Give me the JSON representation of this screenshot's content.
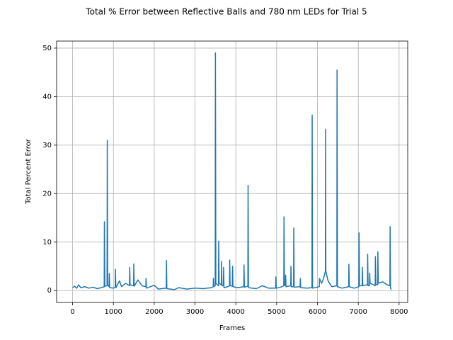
{
  "chart_data": {
    "type": "line",
    "title": "Total % Error between Reflective Balls and 780 nm LEDs for Trial 5",
    "x_label": "Frames",
    "y_label": "Total Percent Error",
    "color": "#1f77b4",
    "grid": true,
    "xlim": [
      -391,
      8211
    ],
    "ylim": [
      -2.45,
      51.45
    ],
    "xticks": [
      0,
      1000,
      2000,
      3000,
      4000,
      5000,
      6000,
      7000,
      8000
    ],
    "yticks": [
      0,
      10,
      20,
      30,
      40,
      50
    ],
    "x": [
      0,
      50,
      100,
      150,
      200,
      300,
      400,
      500,
      600,
      700,
      775,
      780,
      790,
      845,
      850,
      860,
      895,
      900,
      910,
      1000,
      1045,
      1050,
      1060,
      1150,
      1200,
      1300,
      1395,
      1400,
      1410,
      1495,
      1500,
      1510,
      1600,
      1700,
      1795,
      1800,
      1810,
      2000,
      2100,
      2295,
      2300,
      2310,
      2500,
      2600,
      2800,
      3000,
      3200,
      3400,
      3445,
      3450,
      3460,
      3495,
      3500,
      3510,
      3575,
      3580,
      3590,
      3645,
      3650,
      3660,
      3695,
      3700,
      3710,
      3800,
      3845,
      3850,
      3860,
      3915,
      3920,
      3930,
      4050,
      4195,
      4200,
      4210,
      4295,
      4300,
      4310,
      4500,
      4650,
      4800,
      4975,
      4980,
      4990,
      5100,
      5175,
      5180,
      5190,
      5215,
      5220,
      5230,
      5345,
      5350,
      5360,
      5415,
      5420,
      5430,
      5575,
      5580,
      5590,
      5750,
      5865,
      5870,
      5880,
      6045,
      6050,
      6100,
      6150,
      6195,
      6200,
      6205,
      6260,
      6350,
      6475,
      6480,
      6490,
      6600,
      6765,
      6770,
      6780,
      6900,
      7015,
      7020,
      7030,
      7095,
      7100,
      7110,
      7225,
      7230,
      7240,
      7275,
      7280,
      7290,
      7415,
      7420,
      7430,
      7475,
      7480,
      7490,
      7600,
      7700,
      7775,
      7780,
      7790,
      7810
    ],
    "values": [
      0.6,
      0.9,
      0.5,
      1.2,
      0.6,
      0.8,
      0.5,
      0.7,
      0.4,
      0.6,
      0.8,
      14.2,
      0.9,
      1.0,
      31,
      1.2,
      0.8,
      3.5,
      0.6,
      0.5,
      0.7,
      4.4,
      0.6,
      2.0,
      0.8,
      1.5,
      1.0,
      4.8,
      1.2,
      1.0,
      5.5,
      0.9,
      2.2,
      1.0,
      0.8,
      2.5,
      0.5,
      1.1,
      0.3,
      0.5,
      6.2,
      0.4,
      0.2,
      0.6,
      0.3,
      0.5,
      0.4,
      0.6,
      0.8,
      2.5,
      0.8,
      1.0,
      49,
      1.5,
      1.0,
      10.2,
      1.5,
      1.2,
      6.0,
      1.0,
      1.0,
      4.8,
      0.6,
      0.8,
      1.0,
      6.3,
      1.0,
      0.9,
      5.0,
      0.8,
      0.6,
      0.8,
      5.3,
      0.7,
      0.9,
      21.7,
      0.6,
      0.4,
      1.0,
      0.5,
      0.5,
      2.8,
      0.5,
      0.7,
      1.0,
      15.2,
      1.2,
      1.0,
      3.2,
      0.8,
      1.0,
      5.0,
      0.8,
      0.8,
      12.9,
      0.7,
      0.8,
      2.5,
      0.6,
      0.5,
      0.6,
      36.2,
      0.5,
      0.8,
      2.5,
      1.5,
      2.5,
      4.0,
      33.3,
      4.0,
      2.0,
      0.8,
      1.0,
      45.5,
      0.8,
      0.5,
      0.8,
      5.4,
      0.8,
      0.5,
      0.8,
      11.9,
      1.0,
      1.0,
      4.8,
      1.0,
      1.2,
      7.5,
      1.0,
      1.0,
      3.6,
      1.5,
      1.0,
      7.0,
      1.2,
      1.2,
      8.0,
      1.5,
      1.8,
      1.2,
      1.0,
      13.2,
      0.5,
      0.2
    ]
  }
}
